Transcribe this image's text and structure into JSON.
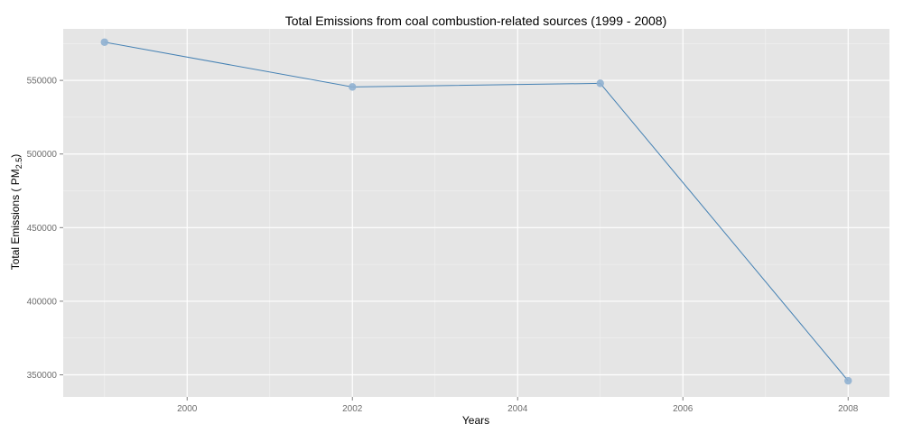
{
  "chart_data": {
    "type": "line",
    "title": "Total Emissions from coal combustion-related sources (1999 - 2008)",
    "xlabel": "Years",
    "ylabel": {
      "main": "Total Emissions ( PM",
      "subscript": "2.5",
      "close": ")"
    },
    "x": [
      1999,
      2002,
      2005,
      2008
    ],
    "series": [
      {
        "values": [
          575950,
          545550,
          548000,
          345950
        ]
      }
    ],
    "xlim": [
      1998.5,
      2008.5
    ],
    "ylim": [
      335000,
      585000
    ],
    "xticks": [
      2000,
      2002,
      2004,
      2006,
      2008
    ],
    "xtick_labels": [
      "2000",
      "2002",
      "2004",
      "2006",
      "2008"
    ],
    "yticks": [
      350000,
      400000,
      450000,
      500000,
      550000
    ],
    "ytick_labels": [
      "350000",
      "400000",
      "450000",
      "500000",
      "550000"
    ],
    "grid": true,
    "legend": "none",
    "colors": {
      "panel_bg": "#e5e5e5",
      "grid_major": "#ffffff",
      "grid_minor": "#f2f2f2",
      "line": "#4682b4",
      "point": "#8fb0d0"
    }
  }
}
